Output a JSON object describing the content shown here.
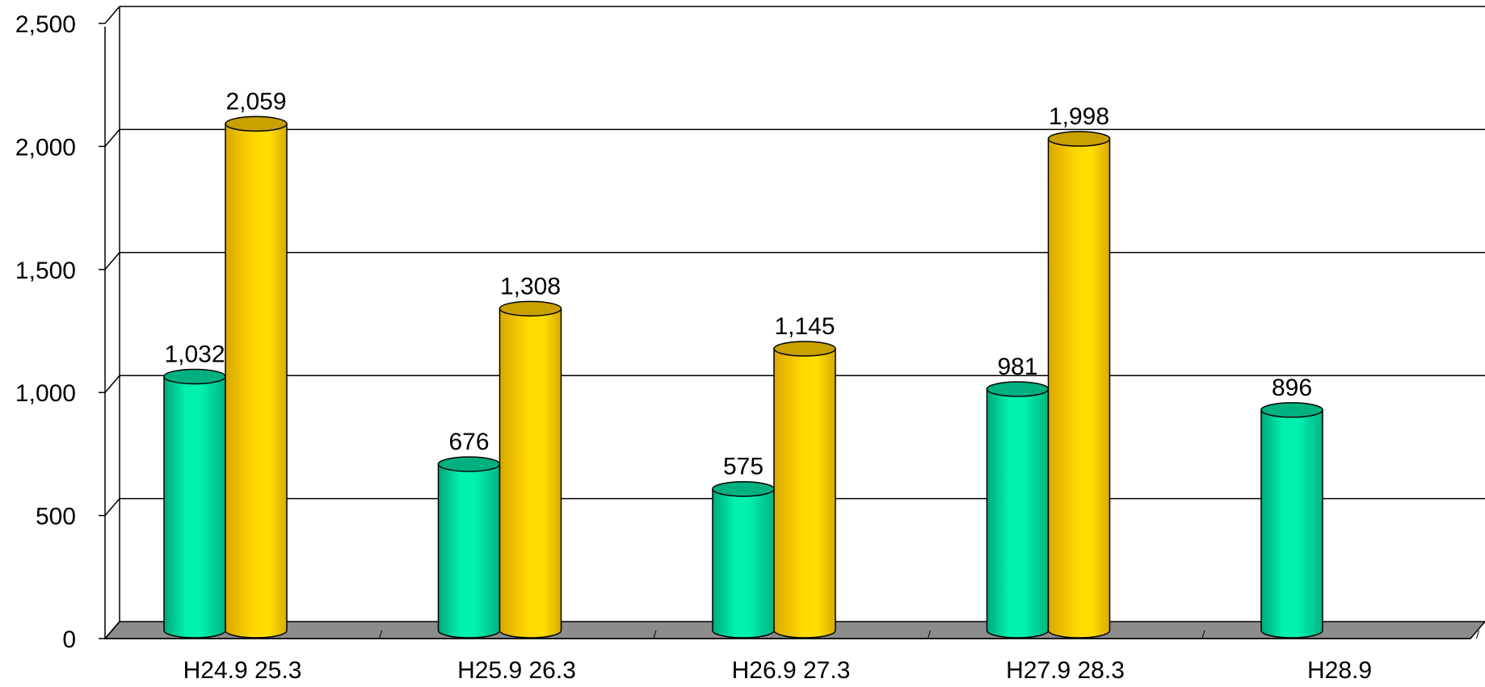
{
  "chart_data": {
    "type": "bar",
    "title": "",
    "xlabel": "",
    "ylabel": "",
    "ylim": [
      0,
      2500
    ],
    "yticks": [
      0,
      500,
      1000,
      1500,
      2000,
      2500
    ],
    "ytick_labels": [
      "0",
      "500",
      "1,000",
      "1,500",
      "2,000",
      "2,500"
    ],
    "grid": true,
    "legend": "none",
    "style": "3d-cylinder",
    "categories": [
      "H24.9",
      "H25.9",
      "H26.9",
      "H27.9",
      "H28.9"
    ],
    "category_labels": [
      "H24.9  25.3",
      "H25.9  26.3",
      "H26.9  27.3",
      "H27.9  28.3",
      "H28.9"
    ],
    "series": [
      {
        "color": "#00E8A8",
        "values": [
          1032,
          676,
          575,
          981,
          896
        ],
        "value_labels": [
          "1,032",
          "676",
          "575",
          "981",
          "896"
        ]
      },
      {
        "color": "#FFD400",
        "values": [
          2059,
          1308,
          1145,
          1998,
          null
        ],
        "value_labels": [
          "2,059",
          "1,308",
          "1,145",
          "1,998",
          ""
        ]
      }
    ]
  }
}
